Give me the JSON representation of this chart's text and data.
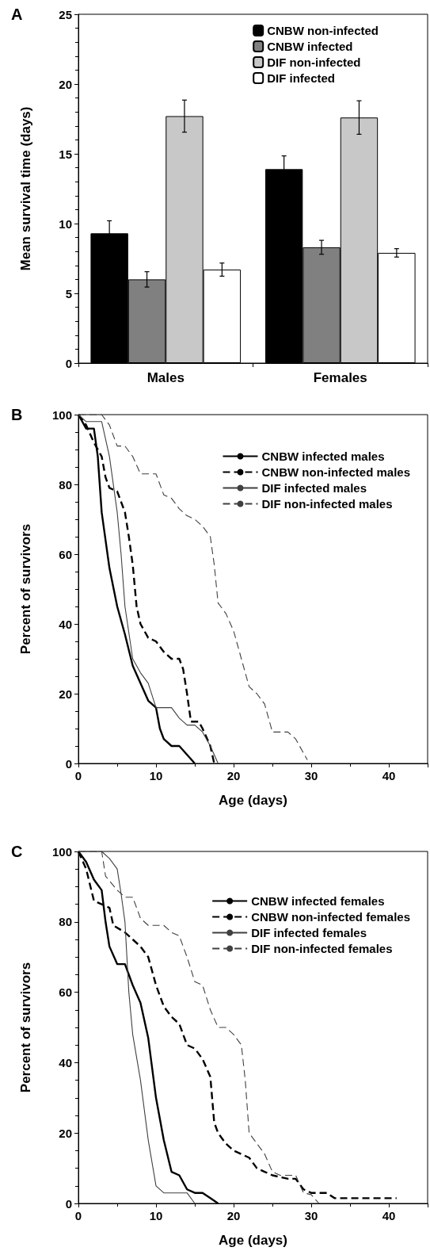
{
  "chart_data": [
    {
      "type": "bar",
      "annotations": [
        "A"
      ],
      "ylabel": "Mean survival time (days)",
      "categories": [
        "Males",
        "Females"
      ],
      "ylim": [
        0,
        25
      ],
      "yticks": [
        0,
        5,
        10,
        15,
        20,
        25
      ],
      "legend": "top right",
      "grid": false,
      "series": [
        {
          "name": "CNBW non-infected",
          "color": "#000000",
          "values": [
            9.3,
            13.9
          ],
          "errors": [
            0.9,
            0.95
          ]
        },
        {
          "name": "CNBW infected",
          "color": "#808080",
          "values": [
            6.0,
            8.3
          ],
          "errors": [
            0.55,
            0.5
          ]
        },
        {
          "name": "DIF non-infected",
          "color": "#c8c8c8",
          "values": [
            17.7,
            17.6
          ],
          "errors": [
            1.15,
            1.2
          ]
        },
        {
          "name": "DIF infected",
          "color": "#ffffff",
          "values": [
            6.7,
            7.9
          ],
          "errors": [
            0.47,
            0.3
          ]
        }
      ]
    },
    {
      "type": "line",
      "annotations": [
        "B"
      ],
      "xlabel": "Age (days)",
      "ylabel": "Percent of survivors",
      "xlim": [
        0,
        45
      ],
      "xticks": [
        0,
        10,
        20,
        30,
        40
      ],
      "ylim": [
        0,
        100
      ],
      "yticks": [
        0,
        20,
        40,
        60,
        80,
        100
      ],
      "legend": "top right",
      "grid": false,
      "series": [
        {
          "name": "CNBW infected males",
          "color": "#000000",
          "line_style": "solid",
          "x": [
            0,
            1,
            2,
            2.5,
            3,
            4,
            5,
            6,
            7,
            8,
            9,
            10,
            10.5,
            11,
            12,
            13,
            14,
            15
          ],
          "values": [
            100,
            96,
            96,
            88,
            72,
            56,
            45,
            37,
            28,
            23,
            18,
            16,
            10,
            7,
            5,
            5,
            2.5,
            0
          ]
        },
        {
          "name": "CNBW non-infected males",
          "color": "#000000",
          "line_style": "dashed",
          "x": [
            0,
            1,
            2,
            3,
            3.5,
            4,
            5,
            6,
            6.5,
            7,
            7.5,
            8,
            9,
            10,
            11,
            12,
            13,
            13.5,
            14,
            14.5,
            15.5,
            16,
            17,
            17.5
          ],
          "values": [
            100,
            97,
            92,
            88,
            82,
            79,
            78,
            72,
            65,
            57,
            45,
            40,
            36,
            35,
            32,
            30,
            30,
            27,
            20,
            12,
            12,
            10,
            5,
            0
          ]
        },
        {
          "name": "DIF infected males",
          "color": "#404040",
          "line_style": "solid",
          "x": [
            0,
            1,
            3,
            4,
            5,
            5.5,
            6,
            7,
            8,
            9,
            10,
            12,
            13,
            14,
            15,
            16,
            17,
            18
          ],
          "values": [
            100,
            98,
            98,
            88,
            72,
            60,
            45,
            30,
            26,
            23,
            16,
            16,
            13,
            11,
            11,
            9,
            5,
            0
          ]
        },
        {
          "name": "DIF non-infected males",
          "color": "#404040",
          "line_style": "dashed",
          "x": [
            0,
            3,
            4,
            5,
            6,
            7,
            8,
            10,
            11,
            12,
            13,
            14,
            15,
            16,
            17,
            17.5,
            18,
            19,
            20,
            21,
            22,
            23,
            24,
            25,
            27,
            28,
            29.5
          ],
          "values": [
            100,
            100,
            97,
            91,
            91,
            88,
            83,
            83,
            77,
            76,
            73,
            71,
            70,
            68,
            65,
            57,
            46,
            43,
            38,
            30,
            22,
            20,
            17,
            9,
            9,
            7,
            1
          ]
        }
      ]
    },
    {
      "type": "line",
      "annotations": [
        "C"
      ],
      "xlabel": "Age (days)",
      "ylabel": "Percent of survivors",
      "xlim": [
        0,
        45
      ],
      "xticks": [
        0,
        10,
        20,
        30,
        40
      ],
      "ylim": [
        0,
        100
      ],
      "yticks": [
        0,
        20,
        40,
        60,
        80,
        100
      ],
      "legend": "top right",
      "grid": false,
      "series": [
        {
          "name": "CNBW infected females",
          "color": "#000000",
          "line_style": "solid",
          "x": [
            0,
            1,
            2,
            3,
            3.5,
            4,
            5,
            6,
            7,
            8,
            9,
            10,
            11,
            12,
            13,
            14,
            15,
            16,
            17,
            18
          ],
          "values": [
            100,
            97,
            92,
            89,
            80,
            73,
            68,
            68,
            62,
            57,
            47,
            30,
            18,
            9,
            8,
            4,
            3,
            3,
            1.5,
            0
          ]
        },
        {
          "name": "CNBW non-infected females",
          "color": "#000000",
          "line_style": "dashed",
          "x": [
            0,
            1,
            2,
            3,
            4,
            4.5,
            6,
            7,
            8,
            9,
            10,
            11,
            12,
            13,
            14,
            15,
            16,
            17,
            17.5,
            18,
            19,
            20,
            21,
            22,
            23,
            24,
            25,
            27,
            28,
            29,
            30,
            32,
            33,
            41
          ],
          "values": [
            100,
            95,
            86,
            85,
            84,
            79,
            77,
            75,
            73,
            70,
            62,
            56,
            53,
            51,
            45,
            44,
            41,
            36,
            23,
            20,
            17,
            15,
            14,
            13,
            10,
            9,
            8,
            7,
            7,
            4,
            3,
            3,
            1.5,
            1.5
          ]
        },
        {
          "name": "DIF infected females",
          "color": "#404040",
          "line_style": "solid",
          "x": [
            0,
            3,
            4,
            5,
            5.5,
            6,
            6.5,
            7,
            8,
            9,
            10,
            11,
            14,
            15
          ],
          "values": [
            100,
            100,
            98,
            95,
            88,
            80,
            60,
            48,
            35,
            18,
            5,
            3,
            3,
            0
          ]
        },
        {
          "name": "DIF non-infected females",
          "color": "#404040",
          "line_style": "dashed",
          "x": [
            0,
            3,
            3.5,
            5,
            6,
            7,
            8,
            9,
            11,
            12,
            13,
            14,
            15,
            16,
            17,
            18,
            19,
            20,
            21,
            21.5,
            22,
            23,
            24,
            25,
            26,
            28,
            29,
            30,
            31
          ],
          "values": [
            100,
            100,
            93,
            89,
            87,
            87,
            81,
            79,
            79,
            77,
            76,
            70,
            63,
            62,
            55,
            50,
            50,
            48,
            45,
            35,
            20,
            17,
            14,
            9,
            8,
            8,
            3,
            2.5,
            0
          ]
        }
      ]
    }
  ]
}
